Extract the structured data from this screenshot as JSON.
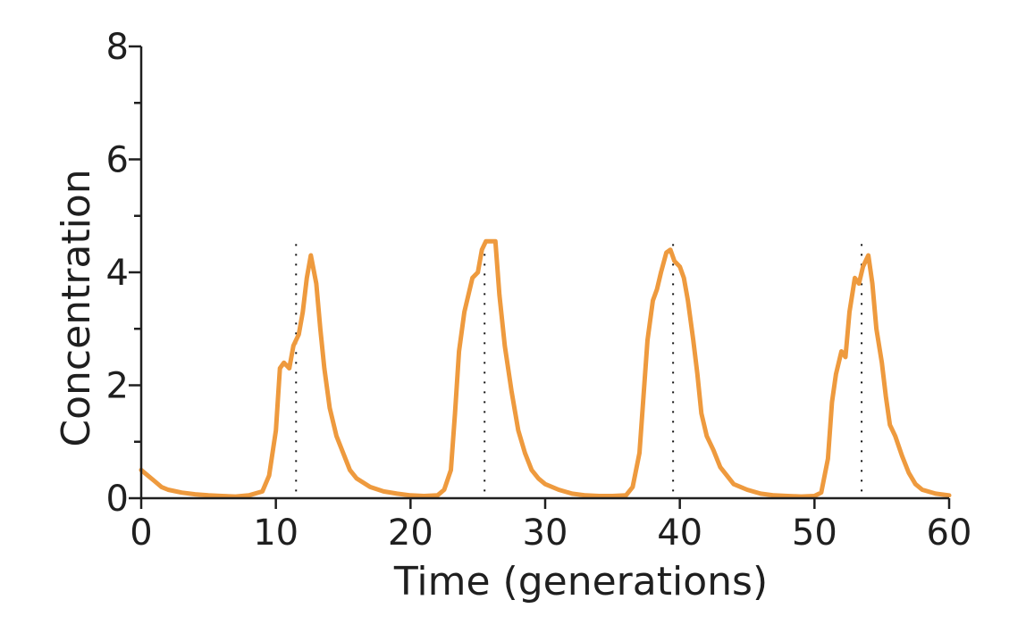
{
  "chart_data": {
    "type": "line",
    "xlabel": "Time (generations)",
    "ylabel": "Concentration",
    "xlim": [
      0,
      60
    ],
    "ylim": [
      0,
      8
    ],
    "x_ticks": [
      0,
      10,
      20,
      30,
      40,
      50,
      60
    ],
    "y_ticks": [
      0,
      2,
      4,
      6,
      8
    ],
    "x_tick_labels": [
      "0",
      "10",
      "20",
      "30",
      "40",
      "50",
      "60"
    ],
    "y_tick_labels": [
      "0",
      "2",
      "4",
      "6",
      "8"
    ],
    "minor_y_ticks": [
      1,
      3,
      5,
      7
    ],
    "grid": false,
    "line_color": "#EE9A3E",
    "reference_line_color": "#111111",
    "reference_lines_x": [
      11.5,
      25.5,
      39.5,
      53.5
    ],
    "reference_lines_top": 4.5,
    "series": [
      {
        "points": [
          [
            0,
            0.5
          ],
          [
            0.5,
            0.4
          ],
          [
            1,
            0.3
          ],
          [
            1.5,
            0.2
          ],
          [
            2,
            0.15
          ],
          [
            3,
            0.1
          ],
          [
            4,
            0.07
          ],
          [
            5,
            0.05
          ],
          [
            6,
            0.04
          ],
          [
            7,
            0.03
          ],
          [
            8,
            0.05
          ],
          [
            9,
            0.12
          ],
          [
            9.5,
            0.4
          ],
          [
            10,
            1.2
          ],
          [
            10.3,
            2.3
          ],
          [
            10.6,
            2.4
          ],
          [
            11,
            2.3
          ],
          [
            11.3,
            2.7
          ],
          [
            11.7,
            2.9
          ],
          [
            12,
            3.3
          ],
          [
            12.3,
            3.9
          ],
          [
            12.6,
            4.3
          ],
          [
            13,
            3.8
          ],
          [
            13.3,
            3.0
          ],
          [
            13.6,
            2.3
          ],
          [
            14,
            1.6
          ],
          [
            14.5,
            1.1
          ],
          [
            15,
            0.8
          ],
          [
            15.5,
            0.5
          ],
          [
            16,
            0.35
          ],
          [
            17,
            0.2
          ],
          [
            18,
            0.12
          ],
          [
            19,
            0.08
          ],
          [
            20,
            0.05
          ],
          [
            21,
            0.04
          ],
          [
            22,
            0.05
          ],
          [
            22.5,
            0.15
          ],
          [
            23,
            0.5
          ],
          [
            23.3,
            1.5
          ],
          [
            23.6,
            2.6
          ],
          [
            24,
            3.3
          ],
          [
            24.3,
            3.6
          ],
          [
            24.6,
            3.9
          ],
          [
            25,
            4.0
          ],
          [
            25.3,
            4.4
          ],
          [
            25.6,
            4.55
          ],
          [
            26,
            4.55
          ],
          [
            26.3,
            4.55
          ],
          [
            26.6,
            3.6
          ],
          [
            27,
            2.7
          ],
          [
            27.5,
            1.9
          ],
          [
            28,
            1.2
          ],
          [
            28.5,
            0.8
          ],
          [
            29,
            0.5
          ],
          [
            29.5,
            0.35
          ],
          [
            30,
            0.25
          ],
          [
            31,
            0.15
          ],
          [
            32,
            0.08
          ],
          [
            33,
            0.05
          ],
          [
            34,
            0.04
          ],
          [
            35,
            0.04
          ],
          [
            36,
            0.05
          ],
          [
            36.5,
            0.2
          ],
          [
            37,
            0.8
          ],
          [
            37.3,
            1.8
          ],
          [
            37.6,
            2.8
          ],
          [
            38,
            3.5
          ],
          [
            38.3,
            3.7
          ],
          [
            38.6,
            4.0
          ],
          [
            39,
            4.35
          ],
          [
            39.3,
            4.4
          ],
          [
            39.6,
            4.2
          ],
          [
            40,
            4.1
          ],
          [
            40.3,
            3.9
          ],
          [
            40.6,
            3.5
          ],
          [
            41,
            2.8
          ],
          [
            41.3,
            2.2
          ],
          [
            41.6,
            1.5
          ],
          [
            42,
            1.1
          ],
          [
            42.5,
            0.85
          ],
          [
            43,
            0.55
          ],
          [
            43.5,
            0.4
          ],
          [
            44,
            0.25
          ],
          [
            45,
            0.15
          ],
          [
            46,
            0.08
          ],
          [
            47,
            0.05
          ],
          [
            48,
            0.04
          ],
          [
            49,
            0.03
          ],
          [
            50,
            0.04
          ],
          [
            50.5,
            0.1
          ],
          [
            51,
            0.7
          ],
          [
            51.3,
            1.7
          ],
          [
            51.6,
            2.2
          ],
          [
            52,
            2.6
          ],
          [
            52.3,
            2.5
          ],
          [
            52.6,
            3.3
          ],
          [
            53,
            3.9
          ],
          [
            53.3,
            3.8
          ],
          [
            53.6,
            4.1
          ],
          [
            54,
            4.3
          ],
          [
            54.3,
            3.8
          ],
          [
            54.6,
            3.0
          ],
          [
            55,
            2.4
          ],
          [
            55.3,
            1.8
          ],
          [
            55.6,
            1.3
          ],
          [
            56,
            1.1
          ],
          [
            56.5,
            0.75
          ],
          [
            57,
            0.45
          ],
          [
            57.5,
            0.25
          ],
          [
            58,
            0.15
          ],
          [
            59,
            0.08
          ],
          [
            60,
            0.05
          ]
        ]
      }
    ]
  }
}
